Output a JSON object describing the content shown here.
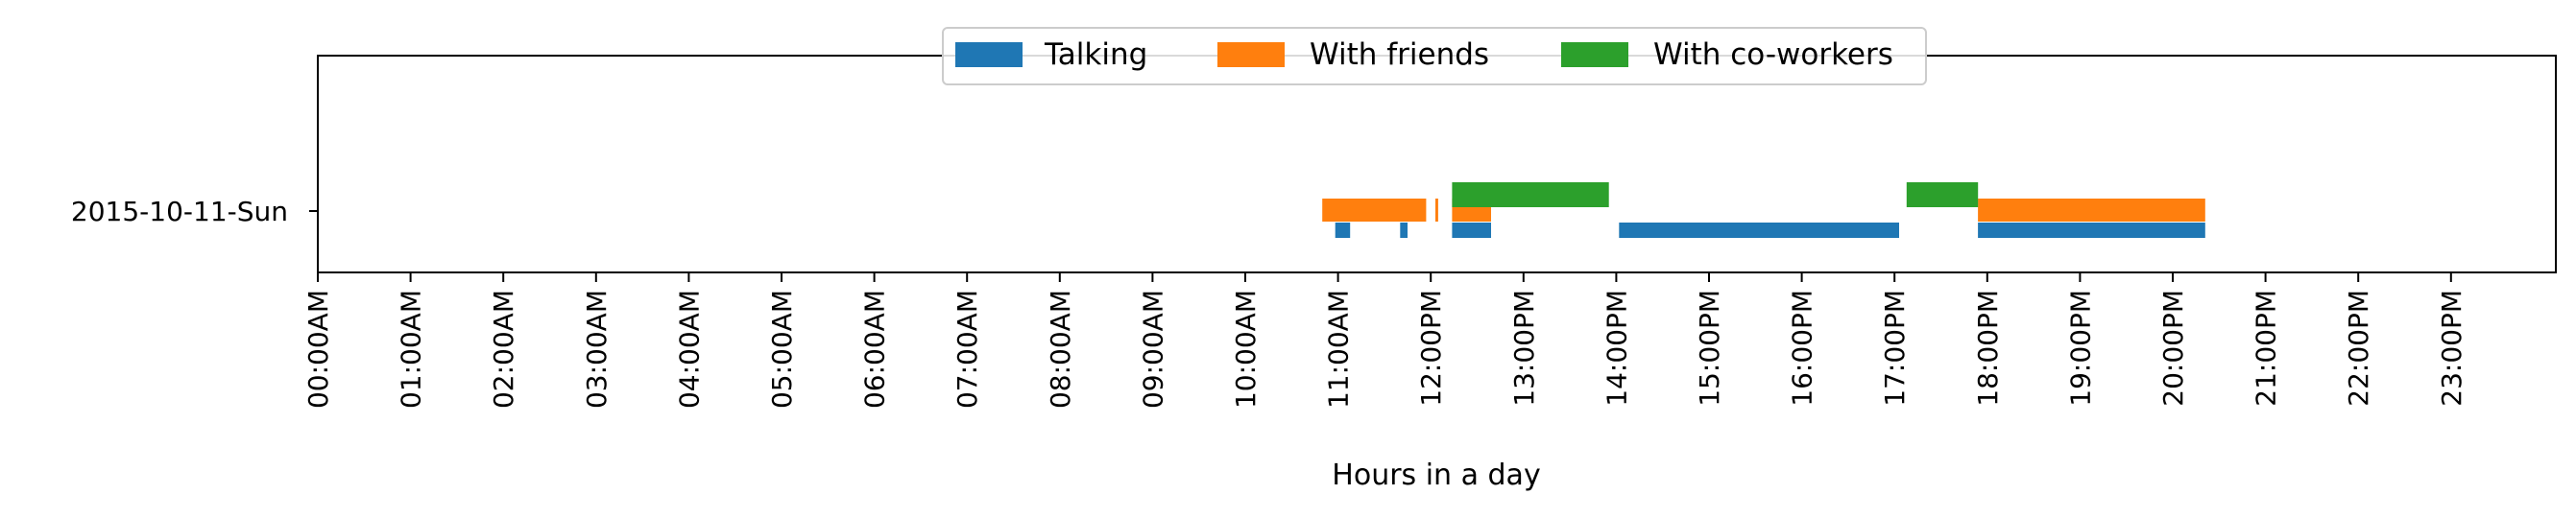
{
  "chart_data": {
    "type": "timeline",
    "title": "",
    "xlabel": "Hours in a day",
    "ylabel": "",
    "xlim": [
      0,
      24
    ],
    "row_label": "2015-10-11-Sun",
    "x_tick_labels": [
      "00:00AM",
      "01:00AM",
      "02:00AM",
      "03:00AM",
      "04:00AM",
      "05:00AM",
      "06:00AM",
      "07:00AM",
      "08:00AM",
      "09:00AM",
      "10:00AM",
      "11:00AM",
      "12:00PM",
      "13:00PM",
      "14:00PM",
      "15:00PM",
      "16:00PM",
      "17:00PM",
      "18:00PM",
      "19:00PM",
      "20:00PM",
      "21:00PM",
      "22:00PM",
      "23:00PM"
    ],
    "legend_position": "top-center",
    "grid": false,
    "series": [
      {
        "name": "Talking",
        "color": "#1f77b4",
        "intervals": [
          [
            10.97,
            11.13
          ],
          [
            11.67,
            11.75
          ],
          [
            12.23,
            12.65
          ],
          [
            14.03,
            17.05
          ],
          [
            17.9,
            20.35
          ]
        ]
      },
      {
        "name": "With friends",
        "color": "#ff7f0e",
        "intervals": [
          [
            10.83,
            11.95
          ],
          [
            12.05,
            12.08
          ],
          [
            12.23,
            12.65
          ],
          [
            17.9,
            20.35
          ]
        ]
      },
      {
        "name": "With co-workers",
        "color": "#2ca02c",
        "intervals": [
          [
            12.23,
            13.92
          ],
          [
            17.13,
            17.9
          ]
        ]
      }
    ]
  }
}
